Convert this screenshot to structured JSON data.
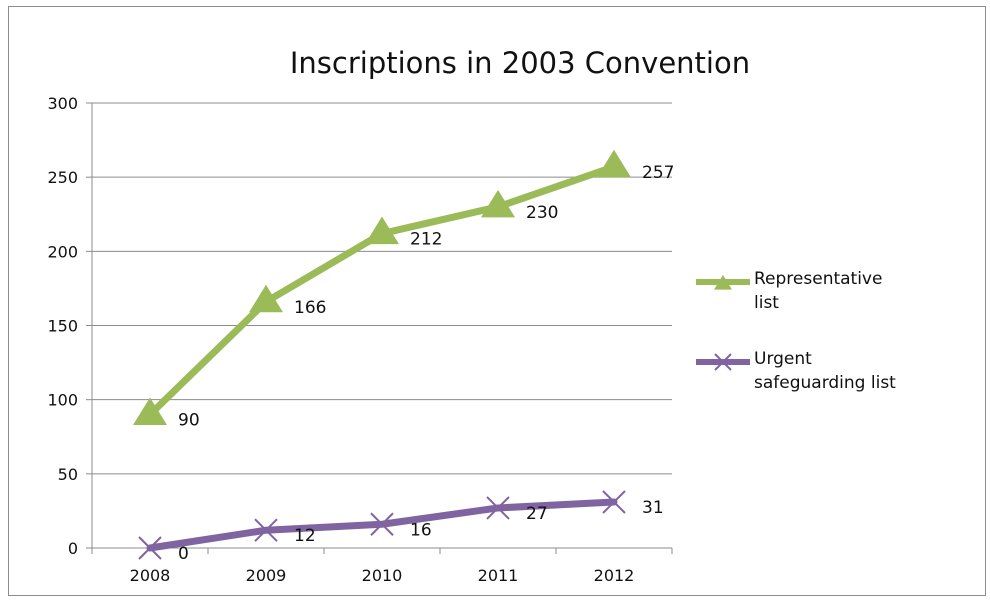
{
  "chart_data": {
    "type": "line",
    "title": "Inscriptions in 2003 Convention",
    "categories": [
      "2008",
      "2009",
      "2010",
      "2011",
      "2012"
    ],
    "ylim": [
      0,
      300
    ],
    "yticks": [
      0,
      50,
      100,
      150,
      200,
      250,
      300
    ],
    "grid": true,
    "legend": "right",
    "series": [
      {
        "name": "Representative list",
        "legend_lines": [
          "Representative",
          "list"
        ],
        "values": [
          90,
          166,
          212,
          230,
          257
        ],
        "labels": [
          "90",
          "166",
          "212",
          "230",
          "257"
        ],
        "color": "#9bbb59",
        "marker": "triangle"
      },
      {
        "name": "Urgent safeguarding list",
        "legend_lines": [
          "Urgent",
          "safeguarding list"
        ],
        "values": [
          0,
          12,
          16,
          27,
          31
        ],
        "labels": [
          "0",
          "12",
          "16",
          "27",
          "31"
        ],
        "color": "#8064a2",
        "marker": "x"
      }
    ]
  }
}
